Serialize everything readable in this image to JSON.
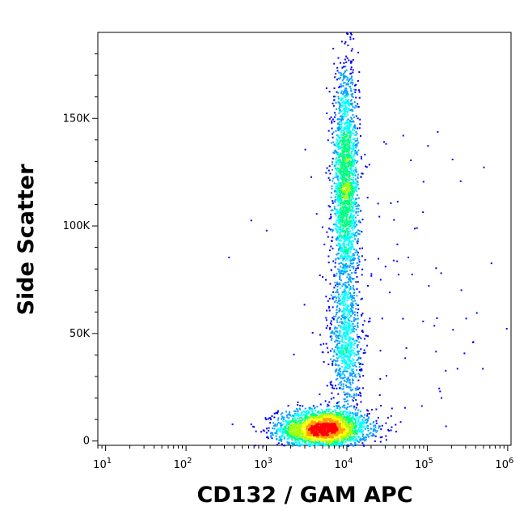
{
  "chart_data": {
    "type": "scatter",
    "subtype": "flow-cytometry-density-dot-plot",
    "xlabel": "CD132 / GAM APC",
    "ylabel": "Side Scatter",
    "x_scale": "log",
    "xlim": [
      8,
      1100000
    ],
    "ylim": [
      -2000,
      190000
    ],
    "x_ticks": [
      {
        "value": 10,
        "base": "10",
        "exp": "1"
      },
      {
        "value": 100,
        "base": "10",
        "exp": "2"
      },
      {
        "value": 1000,
        "base": "10",
        "exp": "3"
      },
      {
        "value": 10000,
        "base": "10",
        "exp": "4"
      },
      {
        "value": 100000,
        "base": "10",
        "exp": "5"
      },
      {
        "value": 1000000,
        "base": "10",
        "exp": "6"
      }
    ],
    "y_ticks": [
      {
        "value": 0,
        "label": "0"
      },
      {
        "value": 50000,
        "label": "50K"
      },
      {
        "value": 100000,
        "label": "100K"
      },
      {
        "value": 150000,
        "label": "150K"
      }
    ],
    "color_scale": [
      "#0000ff",
      "#00a0ff",
      "#00ffff",
      "#00ff80",
      "#a0ff00",
      "#ffff00",
      "#ffa000",
      "#ff0000"
    ],
    "populations": [
      {
        "name": "low_side_scatter",
        "x_center": 5000,
        "x_log_spread": 0.28,
        "y_center": 6000,
        "y_spread": 4500,
        "count": 2600
      },
      {
        "name": "high_side_scatter",
        "x_center": 9500,
        "x_log_spread": 0.08,
        "y_center": 118000,
        "y_spread": 28000,
        "count": 2100
      },
      {
        "name": "bridge",
        "x_center": 9500,
        "x_log_spread": 0.1,
        "y_center": 45000,
        "y_spread": 15000,
        "count": 700
      },
      {
        "name": "scattered",
        "x_center": 30000,
        "x_log_spread": 0.7,
        "y_center": 60000,
        "y_spread": 55000,
        "count": 120
      }
    ],
    "grid": false,
    "legend": "none"
  }
}
